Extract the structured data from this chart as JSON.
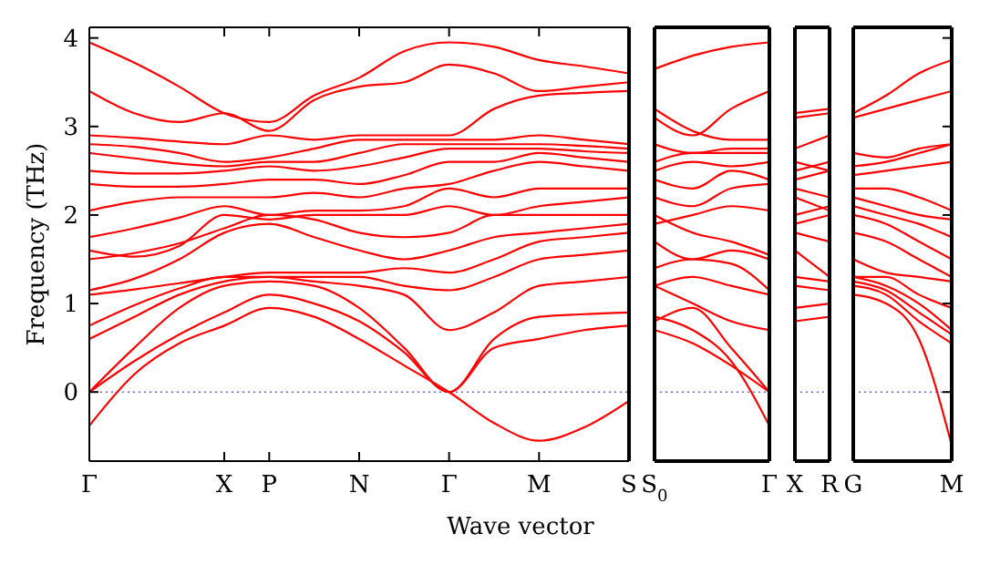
{
  "chart_data": [
    {
      "type": "line",
      "ylabel": "Frequency (THz)",
      "xlabel": "Wave vector",
      "color": "#ff0000",
      "ylim": [
        -0.78,
        4.12
      ],
      "yticks": [
        0,
        1,
        2,
        3,
        4
      ],
      "ref_lines": [
        {
          "axis": "y",
          "value": 0,
          "line_style": "dotted",
          "color": "#6a6ae0"
        }
      ],
      "categories": [
        "Γ",
        null,
        null,
        "X",
        "P",
        null,
        "N",
        null,
        "Γ",
        null,
        "M",
        null,
        "S"
      ],
      "series": [
        {
          "values": [
            -0.38,
            0.2,
            0.55,
            0.75,
            0.95,
            0.85,
            0.6,
            0.3,
            0,
            -0.35,
            -0.55,
            -0.4,
            -0.1
          ]
        },
        {
          "values": [
            0,
            0.35,
            0.65,
            0.9,
            1.1,
            1.0,
            0.8,
            0.45,
            0,
            0.5,
            0.6,
            0.7,
            0.75
          ]
        },
        {
          "values": [
            0,
            0.5,
            0.95,
            1.2,
            1.25,
            1.2,
            0.95,
            0.5,
            0,
            0.6,
            0.85,
            0.88,
            0.9
          ]
        },
        {
          "values": [
            0.6,
            0.85,
            1.1,
            1.25,
            1.3,
            1.25,
            1.2,
            1.1,
            0.7,
            0.9,
            1.2,
            1.25,
            1.3
          ]
        },
        {
          "values": [
            0.75,
            0.98,
            1.17,
            1.3,
            1.3,
            1.3,
            1.3,
            1.2,
            1.15,
            1.3,
            1.5,
            1.55,
            1.6
          ]
        },
        {
          "values": [
            1.1,
            1.16,
            1.23,
            1.3,
            1.35,
            1.35,
            1.35,
            1.4,
            1.35,
            1.5,
            1.7,
            1.75,
            1.8
          ]
        },
        {
          "values": [
            1.15,
            1.28,
            1.5,
            1.8,
            1.9,
            1.75,
            1.6,
            1.5,
            1.6,
            1.75,
            1.8,
            1.85,
            1.9
          ]
        },
        {
          "values": [
            1.5,
            1.57,
            1.68,
            1.85,
            2.0,
            1.95,
            1.8,
            1.75,
            1.8,
            2.0,
            2.0,
            2.0,
            2.0
          ]
        },
        {
          "values": [
            1.6,
            1.53,
            1.65,
            2.0,
            1.95,
            2.0,
            2.0,
            2.0,
            2.1,
            2.0,
            2.1,
            2.15,
            2.2
          ]
        },
        {
          "values": [
            1.75,
            1.85,
            1.97,
            2.1,
            2.0,
            2.05,
            2.05,
            2.1,
            2.3,
            2.2,
            2.3,
            2.3,
            2.3
          ]
        },
        {
          "values": [
            2.05,
            2.15,
            2.2,
            2.2,
            2.2,
            2.25,
            2.2,
            2.3,
            2.35,
            2.5,
            2.6,
            2.55,
            2.5
          ]
        },
        {
          "values": [
            2.35,
            2.32,
            2.32,
            2.35,
            2.4,
            2.4,
            2.35,
            2.45,
            2.6,
            2.6,
            2.7,
            2.65,
            2.6
          ]
        },
        {
          "values": [
            2.5,
            2.47,
            2.47,
            2.5,
            2.55,
            2.5,
            2.55,
            2.65,
            2.75,
            2.75,
            2.75,
            2.72,
            2.7
          ]
        },
        {
          "values": [
            2.7,
            2.64,
            2.58,
            2.55,
            2.6,
            2.6,
            2.7,
            2.8,
            2.8,
            2.8,
            2.8,
            2.78,
            2.75
          ]
        },
        {
          "values": [
            2.8,
            2.77,
            2.7,
            2.6,
            2.65,
            2.75,
            2.85,
            2.85,
            2.85,
            2.85,
            2.9,
            2.85,
            2.8
          ]
        },
        {
          "values": [
            2.9,
            2.87,
            2.83,
            2.8,
            2.9,
            2.85,
            2.9,
            2.9,
            2.9,
            3.2,
            3.35,
            3.38,
            3.4
          ]
        },
        {
          "values": [
            3.4,
            3.15,
            3.05,
            3.15,
            2.95,
            3.3,
            3.45,
            3.5,
            3.7,
            3.6,
            3.4,
            3.45,
            3.5
          ]
        },
        {
          "values": [
            3.95,
            3.72,
            3.45,
            3.15,
            3.05,
            3.35,
            3.55,
            3.85,
            3.95,
            3.9,
            3.75,
            3.68,
            3.6
          ]
        }
      ]
    },
    {
      "type": "line",
      "color": "#ff0000",
      "ylim": [
        -0.78,
        4.12
      ],
      "yticks": [
        0,
        1,
        2,
        3,
        4
      ],
      "tick_labels": "x",
      "ref_lines": [
        {
          "axis": "y",
          "value": 0,
          "line_style": "dotted",
          "color": "#6a6ae0"
        }
      ],
      "categories": [
        "S$_{0}$",
        null,
        null,
        "Γ"
      ],
      "series": [
        {
          "values": [
            0.7,
            0.55,
            0.3,
            0
          ]
        },
        {
          "values": [
            0.85,
            0.7,
            0.35,
            -0.38
          ]
        },
        {
          "values": [
            0.8,
            0.95,
            0.5,
            0
          ]
        },
        {
          "values": [
            1.2,
            1.0,
            0.8,
            0.7
          ]
        },
        {
          "values": [
            1.2,
            1.3,
            1.2,
            1.1
          ]
        },
        {
          "values": [
            1.4,
            1.5,
            1.45,
            1.15
          ]
        },
        {
          "values": [
            1.7,
            1.5,
            1.6,
            1.5
          ]
        },
        {
          "values": [
            2.0,
            1.8,
            1.7,
            1.55
          ]
        },
        {
          "values": [
            1.9,
            2.0,
            2.1,
            2.05
          ]
        },
        {
          "values": [
            2.2,
            2.1,
            2.3,
            2.35
          ]
        },
        {
          "values": [
            2.4,
            2.3,
            2.5,
            2.4
          ]
        },
        {
          "values": [
            2.5,
            2.6,
            2.55,
            2.6
          ]
        },
        {
          "values": [
            2.6,
            2.7,
            2.7,
            2.7
          ]
        },
        {
          "values": [
            2.8,
            2.7,
            2.75,
            2.75
          ]
        },
        {
          "values": [
            3.2,
            2.95,
            2.85,
            2.85
          ]
        },
        {
          "values": [
            3.1,
            2.9,
            3.2,
            3.4
          ]
        },
        {
          "values": [
            3.65,
            3.8,
            3.9,
            3.95
          ]
        }
      ]
    },
    {
      "type": "line",
      "color": "#ff0000",
      "ylim": [
        -0.78,
        4.12
      ],
      "yticks": [
        0,
        1,
        2,
        3,
        4
      ],
      "tick_labels": "x",
      "ref_lines": [
        {
          "axis": "y",
          "value": 0,
          "line_style": "dotted",
          "color": "#6a6ae0"
        }
      ],
      "categories": [
        "X",
        "R"
      ],
      "series": [
        {
          "values": [
            0.8,
            0.85
          ]
        },
        {
          "values": [
            0.95,
            1.0
          ]
        },
        {
          "values": [
            1.2,
            1.15
          ]
        },
        {
          "values": [
            1.3,
            1.25
          ]
        },
        {
          "values": [
            1.6,
            1.3
          ]
        },
        {
          "values": [
            1.8,
            1.7
          ]
        },
        {
          "values": [
            1.9,
            2.0
          ]
        },
        {
          "values": [
            2.0,
            2.1
          ]
        },
        {
          "values": [
            2.2,
            2.05
          ]
        },
        {
          "values": [
            2.3,
            2.2
          ]
        },
        {
          "values": [
            2.4,
            2.5
          ]
        },
        {
          "values": [
            2.5,
            2.6
          ]
        },
        {
          "values": [
            2.6,
            2.5
          ]
        },
        {
          "values": [
            2.75,
            2.9
          ]
        },
        {
          "values": [
            3.1,
            3.15
          ]
        },
        {
          "values": [
            3.15,
            3.2
          ]
        }
      ]
    },
    {
      "type": "line",
      "color": "#ff0000",
      "ylim": [
        -0.78,
        4.12
      ],
      "yticks": [
        0,
        1,
        2,
        3,
        4
      ],
      "tick_labels": "x",
      "ref_lines": [
        {
          "axis": "y",
          "value": 0,
          "line_style": "dotted",
          "color": "#6a6ae0"
        }
      ],
      "categories": [
        "G",
        null,
        null,
        "M"
      ],
      "series": [
        {
          "values": [
            1.1,
            1.0,
            0.6,
            -0.6
          ]
        },
        {
          "values": [
            1.2,
            1.1,
            0.8,
            0.55
          ]
        },
        {
          "values": [
            1.25,
            1.15,
            0.9,
            0.65
          ]
        },
        {
          "values": [
            1.3,
            1.2,
            1.0,
            0.7
          ]
        },
        {
          "values": [
            1.3,
            1.3,
            1.1,
            0.95
          ]
        },
        {
          "values": [
            1.5,
            1.35,
            1.3,
            1.25
          ]
        },
        {
          "values": [
            1.8,
            1.7,
            1.5,
            1.3
          ]
        },
        {
          "values": [
            2.0,
            1.9,
            1.7,
            1.5
          ]
        },
        {
          "values": [
            2.1,
            2.0,
            1.9,
            1.75
          ]
        },
        {
          "values": [
            2.2,
            2.1,
            2.0,
            1.95
          ]
        },
        {
          "values": [
            2.3,
            2.3,
            2.2,
            2.05
          ]
        },
        {
          "values": [
            2.45,
            2.5,
            2.55,
            2.6
          ]
        },
        {
          "values": [
            2.55,
            2.6,
            2.7,
            2.8
          ]
        },
        {
          "values": [
            2.7,
            2.65,
            2.75,
            2.8
          ]
        },
        {
          "values": [
            3.1,
            3.2,
            3.3,
            3.4
          ]
        },
        {
          "values": [
            3.15,
            3.35,
            3.6,
            3.75
          ]
        }
      ]
    }
  ]
}
